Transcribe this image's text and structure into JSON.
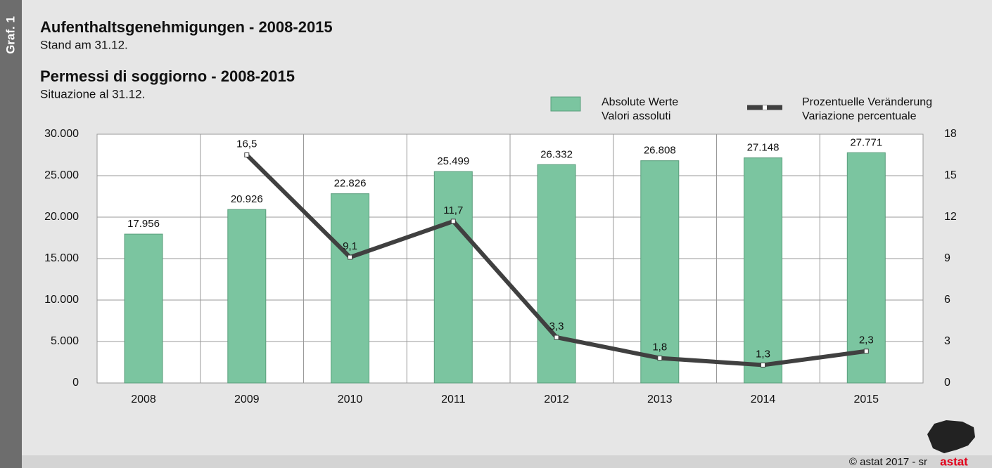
{
  "chart_data": {
    "type": "bar",
    "label": "Graf. 1",
    "title": "Aufenthaltsgenehmigungen - 2008-2015",
    "subtitle": "Stand am 31.12.",
    "title_it": "Permessi di soggiorno - 2008-2015",
    "subtitle_it": "Situazione al 31.12.",
    "categories": [
      "2008",
      "2009",
      "2010",
      "2011",
      "2012",
      "2013",
      "2014",
      "2015"
    ],
    "series": [
      {
        "name": "Absolute Werte\nValori assoluti",
        "type": "bar",
        "color": "#7bc5a0",
        "values": [
          17956,
          20926,
          22826,
          25499,
          26332,
          26808,
          27148,
          27771
        ],
        "value_labels": [
          "17.956",
          "20.926",
          "22.826",
          "25.499",
          "26.332",
          "26.808",
          "27.148",
          "27.771"
        ]
      },
      {
        "name": "Prozentuelle Veränderung\nVariazione percentuale",
        "type": "line",
        "axis": "y2",
        "color": "#404040",
        "values": [
          null,
          16.5,
          9.1,
          11.7,
          3.3,
          1.8,
          1.3,
          2.3
        ],
        "value_labels": [
          null,
          "16,5",
          "9,1",
          "11,7",
          "3,3",
          "1,8",
          "1,3",
          "2,3"
        ]
      }
    ],
    "ylim": [
      0,
      30000
    ],
    "yticks": [
      0,
      {
        "value": 5000,
        "label": "5.000"
      },
      {
        "value": 10000,
        "label": "10.000"
      },
      {
        "value": 15000,
        "label": "15.000"
      },
      {
        "value": 20000,
        "label": "20.000"
      },
      {
        "value": 25000,
        "label": "25.000"
      },
      {
        "value": 30000,
        "label": "30.000"
      }
    ],
    "y2lim": [
      0,
      18
    ],
    "y2ticks": [
      0,
      3,
      6,
      9,
      12,
      15,
      18
    ],
    "grid": true
  },
  "footer": {
    "copyright": "© astat 2017 - sr",
    "logo": "astat"
  }
}
